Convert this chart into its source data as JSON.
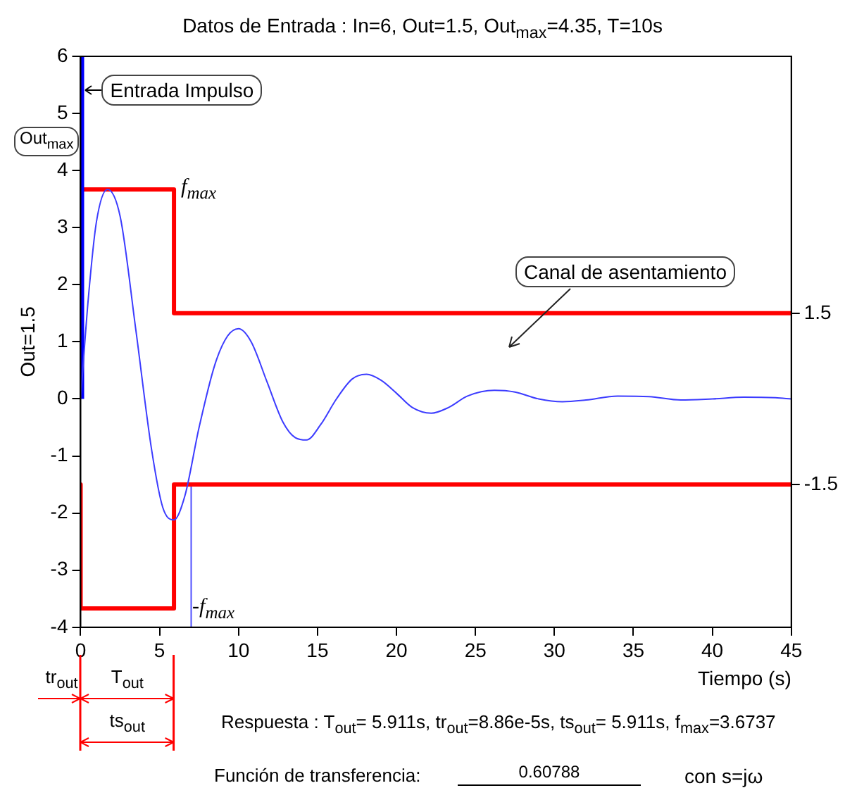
{
  "chart_data": {
    "type": "line",
    "title": "Datos de Entrada  :  In=6, Out=1.5, Out$_{max}$=4.35, T=10s",
    "xlabel": "Tiempo (s)",
    "ylabel": "Out=1.5",
    "xlim": [
      0,
      45
    ],
    "xticks": [
      0,
      5,
      10,
      15,
      20,
      25,
      30,
      35,
      40,
      45
    ],
    "ylim": [
      -4,
      6
    ],
    "yticks": [
      -4,
      -3,
      -2,
      -1,
      0,
      1,
      2,
      3,
      4,
      5,
      6
    ],
    "y2lim": [
      -4,
      6
    ],
    "y2ticks": [
      1.5,
      -1.5
    ],
    "grid": false,
    "legend": false,
    "marker": "none",
    "line_style": "solid",
    "series": [
      {
        "color": "#3c3cff",
        "x": [
          0,
          0.5,
          1,
          1.7,
          2.5,
          3.5,
          4.5,
          5.2,
          5.9,
          6.6,
          7.5,
          8.5,
          9.3,
          10,
          10.8,
          11.8,
          12.8,
          13.6,
          14.3,
          15.2,
          16.2,
          17.2,
          18.1,
          19,
          20,
          21,
          22.2,
          23.3,
          24.5,
          26.2,
          27.5,
          29,
          30.5,
          32,
          34,
          36,
          38,
          40,
          42,
          44,
          45
        ],
        "values": [
          0,
          1.8,
          3.1,
          3.67,
          3.2,
          1.2,
          -0.9,
          -1.9,
          -2.12,
          -1.7,
          -0.5,
          0.6,
          1.1,
          1.23,
          1.0,
          0.3,
          -0.4,
          -0.68,
          -0.72,
          -0.45,
          0.0,
          0.35,
          0.43,
          0.33,
          0.1,
          -0.15,
          -0.25,
          -0.15,
          0.05,
          0.15,
          0.12,
          0.0,
          -0.05,
          -0.02,
          0.05,
          0.04,
          -0.02,
          0.0,
          0.03,
          0.02,
          0.0
        ]
      },
      {
        "color": "#0000ff",
        "x": [
          0,
          0
        ],
        "values": [
          0,
          6
        ]
      },
      {
        "color": "#ff0000",
        "x": [
          0,
          5.911,
          5.911,
          45
        ],
        "values": [
          3.67,
          3.67,
          1.5,
          1.5
        ]
      },
      {
        "color": "#ff0000",
        "x": [
          0,
          0,
          5.911,
          5.911,
          45
        ],
        "values": [
          -1.5,
          -3.67,
          -3.67,
          -1.5,
          -1.5
        ]
      },
      {
        "color": "#5050ff",
        "x": [
          7,
          7
        ],
        "values": [
          -1.5,
          -4
        ]
      }
    ],
    "annotations": [
      "Entrada Impulso",
      "Out$_{max}$",
      {
        "text": "f$_{max}$",
        "x": 5.911,
        "y": 3.67
      },
      {
        "text": "-f$_{max}$",
        "x": 5.911,
        "y": -3.67
      },
      "Canal de asentamiento",
      "tr$_{out}$",
      "T$_{out}$",
      "ts$_{out}$",
      "Respuesta  : T$_{out}$=  5.911s, tr$_{out}$=8.86e-5s, ts$_{out}$=  5.911s, f$_{max}$=3.6737",
      "Función de transferencia:",
      "0.60788",
      "con  s=jω"
    ]
  }
}
